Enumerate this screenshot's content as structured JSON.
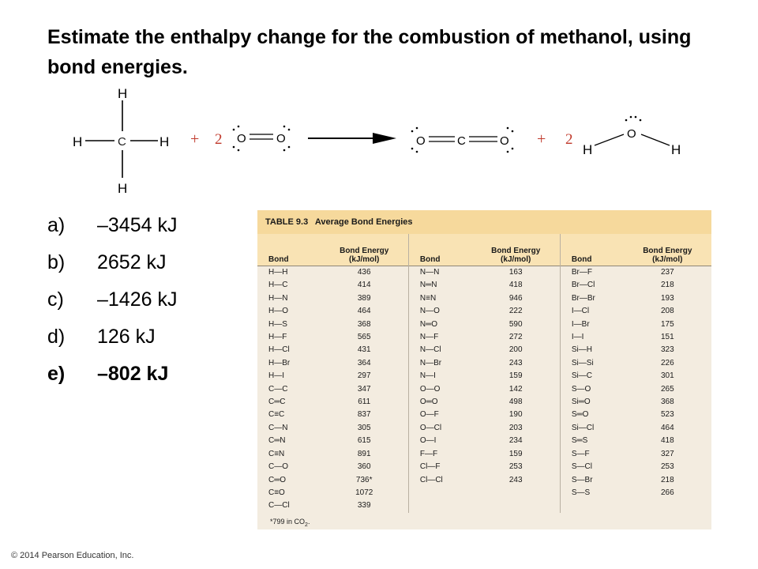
{
  "question": "Estimate the enthalpy change for the combustion of methanol, using bond energies.",
  "reaction": {
    "coefficient_o2": "2",
    "coefficient_h2o": "2",
    "plus": "+",
    "atoms": {
      "H": "H",
      "C": "C",
      "O": "O"
    }
  },
  "answers": [
    {
      "letter": "a)",
      "text": "–3454 kJ"
    },
    {
      "letter": "b)",
      "text": "2652 kJ"
    },
    {
      "letter": "c)",
      "text": "–1426 kJ"
    },
    {
      "letter": "d)",
      "text": "126 kJ"
    },
    {
      "letter": "e)",
      "text": "–802 kJ",
      "correct": true
    }
  ],
  "table": {
    "number": "TABLE 9.3",
    "title": "Average Bond Energies",
    "col_bond": "Bond",
    "col_energy_1": "Bond Energy",
    "col_energy_2": "(kJ/mol)",
    "groups": [
      [
        [
          "H—H",
          "436"
        ],
        [
          "H—C",
          "414"
        ],
        [
          "H—N",
          "389"
        ],
        [
          "H—O",
          "464"
        ],
        [
          "H—S",
          "368"
        ],
        [
          "H—F",
          "565"
        ],
        [
          "H—Cl",
          "431"
        ],
        [
          "H—Br",
          "364"
        ],
        [
          "H—I",
          "297"
        ],
        [
          "C—C",
          "347"
        ],
        [
          "C═C",
          "611"
        ],
        [
          "C≡C",
          "837"
        ],
        [
          "C—N",
          "305"
        ],
        [
          "C═N",
          "615"
        ],
        [
          "C≡N",
          "891"
        ],
        [
          "C—O",
          "360"
        ],
        [
          "C═O",
          "736*"
        ],
        [
          "C≡O",
          "1072"
        ],
        [
          "C—Cl",
          "339"
        ]
      ],
      [
        [
          "N—N",
          "163"
        ],
        [
          "N═N",
          "418"
        ],
        [
          "N≡N",
          "946"
        ],
        [
          "N—O",
          "222"
        ],
        [
          "N═O",
          "590"
        ],
        [
          "N—F",
          "272"
        ],
        [
          "N—Cl",
          "200"
        ],
        [
          "N—Br",
          "243"
        ],
        [
          "N—I",
          "159"
        ],
        [
          "O—O",
          "142"
        ],
        [
          "O═O",
          "498"
        ],
        [
          "O—F",
          "190"
        ],
        [
          "O—Cl",
          "203"
        ],
        [
          "O—I",
          "234"
        ],
        [
          "F—F",
          "159"
        ],
        [
          "Cl—F",
          "253"
        ],
        [
          "Cl—Cl",
          "243"
        ]
      ],
      [
        [
          "Br—F",
          "237"
        ],
        [
          "Br—Cl",
          "218"
        ],
        [
          "Br—Br",
          "193"
        ],
        [
          "I—Cl",
          "208"
        ],
        [
          "I—Br",
          "175"
        ],
        [
          "I—I",
          "151"
        ],
        [
          "Si—H",
          "323"
        ],
        [
          "Si—Si",
          "226"
        ],
        [
          "Si—C",
          "301"
        ],
        [
          "S—O",
          "265"
        ],
        [
          "Si═O",
          "368"
        ],
        [
          "S═O",
          "523"
        ],
        [
          "Si—Cl",
          "464"
        ],
        [
          "S═S",
          "418"
        ],
        [
          "S—F",
          "327"
        ],
        [
          "S—Cl",
          "253"
        ],
        [
          "S—Br",
          "218"
        ],
        [
          "S—S",
          "266"
        ]
      ]
    ],
    "footnote_prefix": "*799 in CO",
    "footnote_sub": "2",
    "footnote_suffix": "."
  },
  "copyright": "© 2014 Pearson Education, Inc."
}
